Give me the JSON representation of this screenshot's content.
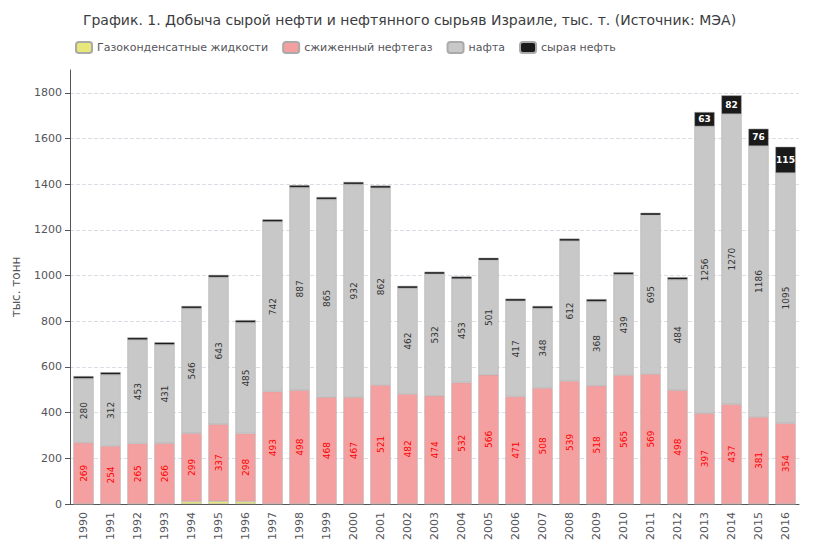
{
  "chart_data": {
    "type": "bar",
    "title": "График. 1. Добыча сырой нефти и нефтянного сырьяв Израиле, тыс. т. (Источник: МЭА)",
    "ylabel": "тыс. тонн",
    "categories": [
      "1990",
      "1991",
      "1992",
      "1993",
      "1994",
      "1995",
      "1996",
      "1997",
      "1998",
      "1999",
      "2000",
      "2001",
      "2002",
      "2003",
      "2004",
      "2005",
      "2006",
      "2007",
      "2008",
      "2009",
      "2010",
      "2011",
      "2012",
      "2013",
      "2014",
      "2015",
      "2016"
    ],
    "stacked": true,
    "grid": true,
    "legend": "upper left",
    "ylim": [
      0,
      1900
    ],
    "yticks": [
      0,
      200,
      400,
      600,
      800,
      1000,
      1200,
      1400,
      1600,
      1800
    ],
    "series": [
      {
        "name": "Газоконденсатные жидкости",
        "color": "#e8e87a",
        "data_labels": false,
        "values": [
          0,
          0,
          0,
          0,
          11,
          12,
          11,
          0,
          0,
          0,
          0,
          0,
          0,
          0,
          0,
          0,
          0,
          0,
          0,
          0,
          0,
          0,
          0,
          0,
          0,
          0,
          0
        ]
      },
      {
        "name": "сжиженный нефтегаз",
        "color": "#f4a0a0",
        "data_labels": true,
        "values": [
          269,
          254,
          265,
          266,
          299,
          337,
          298,
          493,
          498,
          468,
          467,
          521,
          482,
          474,
          532,
          566,
          471,
          508,
          539,
          518,
          565,
          569,
          498,
          397,
          437,
          381,
          354
        ]
      },
      {
        "name": "нафта",
        "color": "#c8c8c8",
        "data_labels": true,
        "values": [
          280,
          312,
          453,
          431,
          546,
          643,
          485,
          742,
          887,
          865,
          932,
          862,
          462,
          532,
          453,
          501,
          417,
          348,
          612,
          368,
          439,
          695,
          484,
          1256,
          1270,
          1186,
          1095
        ]
      },
      {
        "name": "сырая нефть",
        "color": "#1a1a1a",
        "values": [
          11,
          11,
          11,
          11,
          11,
          11,
          11,
          11,
          11,
          11,
          11,
          11,
          11,
          11,
          11,
          11,
          11,
          11,
          11,
          11,
          11,
          11,
          11,
          63,
          82,
          76,
          115
        ],
        "value_labels": [
          null,
          null,
          null,
          null,
          null,
          null,
          null,
          null,
          null,
          null,
          null,
          null,
          null,
          null,
          null,
          null,
          null,
          null,
          null,
          null,
          null,
          null,
          null,
          "63",
          "82",
          "76",
          "115"
        ]
      }
    ]
  }
}
